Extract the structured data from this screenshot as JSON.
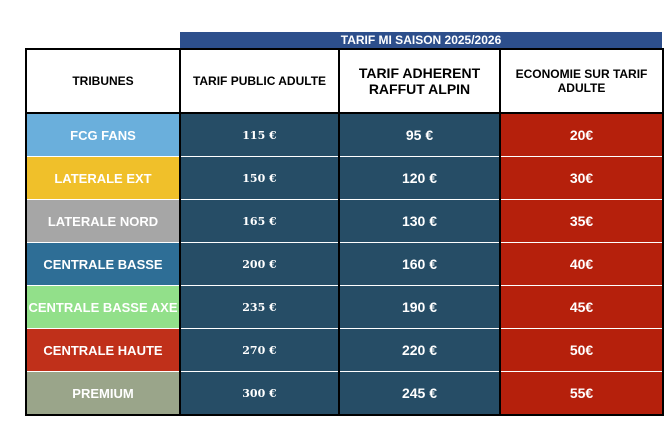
{
  "banner": "TARIF MI SAISON 2025/2026",
  "table": {
    "header": [
      "TRIBUNES",
      "TARIF PUBLIC ADULTE",
      "TARIF ADHERENT RAFFUT ALPIN",
      "ECONOMIE SUR TARIF ADULTE"
    ],
    "rows": [
      {
        "tribune": "FCG FANS",
        "color": "#6aafdc",
        "public": "115 €",
        "adherent": "95 €",
        "economie": "20€"
      },
      {
        "tribune": "LATERALE EXT",
        "color": "#f0c02a",
        "public": "150 €",
        "adherent": "120 €",
        "economie": "30€"
      },
      {
        "tribune": "LATERALE NORD",
        "color": "#a6a6a6",
        "public": "165 €",
        "adherent": "130 €",
        "economie": "35€"
      },
      {
        "tribune": "CENTRALE BASSE",
        "color": "#2e6e96",
        "public": "200 €",
        "adherent": "160 €",
        "economie": "40€"
      },
      {
        "tribune": "CENTRALE BASSE AXE",
        "color": "#92e08a",
        "public": "235 €",
        "adherent": "190 €",
        "economie": "45€"
      },
      {
        "tribune": "CENTRALE HAUTE",
        "color": "#c0301a",
        "public": "270 €",
        "adherent": "220 €",
        "economie": "50€"
      },
      {
        "tribune": "PREMIUM",
        "color": "#9aa58a",
        "public": "300 €",
        "adherent": "245 €",
        "economie": "55€"
      }
    ]
  }
}
